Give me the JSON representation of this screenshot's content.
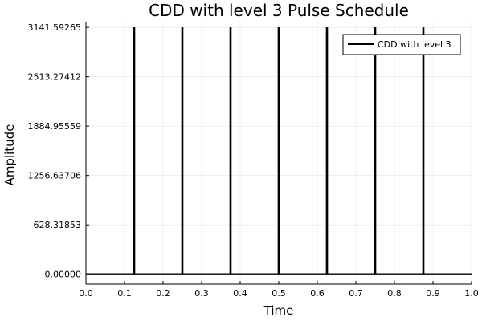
{
  "chart_data": {
    "type": "line",
    "title": "CDD with level 3 Pulse Schedule",
    "xlabel": "Time",
    "ylabel": "Amplitude",
    "xlim": [
      0.0,
      1.0
    ],
    "ylim": [
      -125.66,
      3204.42
    ],
    "grid": true,
    "legend_position": "top-right",
    "x_ticks": [
      0.0,
      0.1,
      0.2,
      0.3,
      0.4,
      0.5,
      0.6,
      0.7,
      0.8,
      0.9,
      1.0
    ],
    "x_tick_labels": [
      "0.0",
      "0.1",
      "0.2",
      "0.3",
      "0.4",
      "0.5",
      "0.6",
      "0.7",
      "0.8",
      "0.9",
      "1.0"
    ],
    "y_ticks": [
      0.0,
      628.31853,
      1256.63706,
      1884.95559,
      2513.27412,
      3141.59265
    ],
    "y_tick_labels": [
      "0.00000",
      "628.31853",
      "1256.63706",
      "1884.95559",
      "2513.27412",
      "3141.59265"
    ],
    "series": [
      {
        "name": "CDD with level 3",
        "color": "#000000",
        "pulse_times": [
          0.125,
          0.25,
          0.375,
          0.5,
          0.625,
          0.75,
          0.875
        ],
        "pulse_amplitude": 3141.59265,
        "baseline": 0.0
      }
    ]
  }
}
